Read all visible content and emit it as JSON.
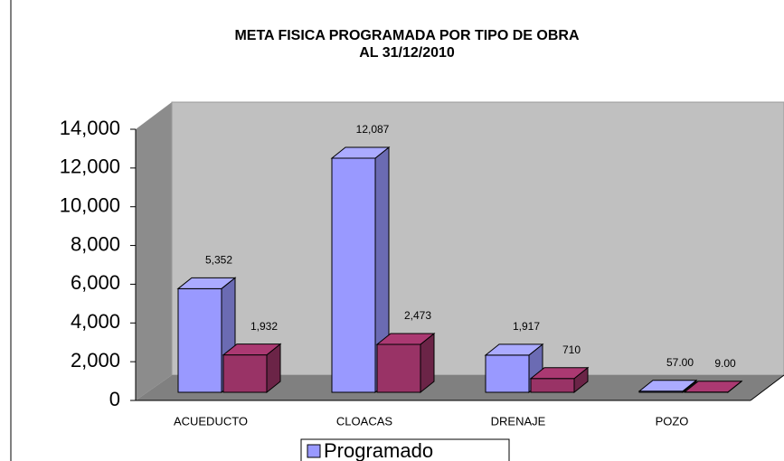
{
  "chart_data": {
    "type": "bar3d",
    "title": "META FISICA PROGRAMADA POR TIPO DE OBRA",
    "subtitle": "AL 31/12/2010",
    "categories": [
      "ACUEDUCTO",
      "CLOACAS",
      "DRENAJE",
      "POZO"
    ],
    "series": [
      {
        "name": "Programado",
        "color": "#9999ff",
        "values": [
          5352,
          12087,
          1917,
          57
        ],
        "value_labels": [
          "5,352",
          "12,087",
          "1,917",
          "57.00"
        ]
      },
      {
        "color": "#993366",
        "values": [
          1932,
          2473,
          710,
          9
        ],
        "value_labels": [
          "1,932",
          "2,473",
          "710",
          "9.00"
        ]
      }
    ],
    "ylim": [
      0,
      14000
    ],
    "yticks": [
      0,
      {
        "value": 2000,
        "label": "2,000"
      },
      {
        "value": 4000,
        "label": "4,000"
      },
      {
        "value": 6000,
        "label": "6,000"
      },
      {
        "value": 8000,
        "label": "8,000"
      },
      {
        "value": 10000,
        "label": "10,000"
      },
      {
        "value": 12000,
        "label": "12,000"
      },
      {
        "value": 14000,
        "label": "14,000"
      }
    ]
  }
}
